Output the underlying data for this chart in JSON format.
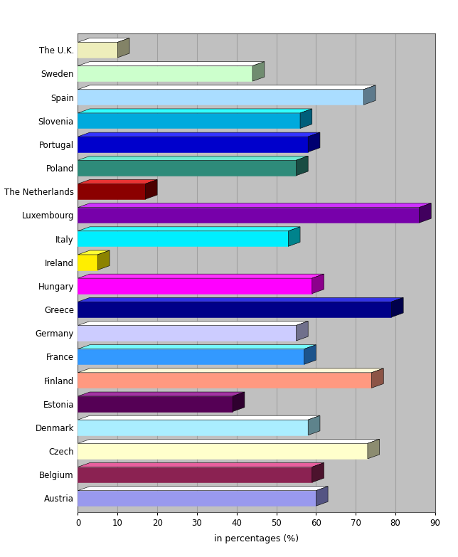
{
  "countries": [
    "Austria",
    "Belgium",
    "Czech",
    "Denmark",
    "Estonia",
    "Finland",
    "France",
    "Germany",
    "Greece",
    "Hungary",
    "Ireland",
    "Italy",
    "Luxembourg",
    "The Netherlands",
    "Poland",
    "Portugal",
    "Slovenia",
    "Spain",
    "Sweden",
    "The U.K."
  ],
  "values": [
    60,
    59,
    73,
    58,
    39,
    74,
    57,
    55,
    79,
    59,
    5,
    53,
    86,
    17,
    55,
    58,
    56,
    72,
    44,
    10
  ],
  "colors": [
    "#9999ee",
    "#8b2252",
    "#ffffcc",
    "#aaeeff",
    "#550055",
    "#ff9980",
    "#3399ff",
    "#ccccff",
    "#000088",
    "#ff00ff",
    "#ffee00",
    "#00eeff",
    "#7700aa",
    "#8b0000",
    "#2e8b7a",
    "#0000cc",
    "#00aadd",
    "#aaddff",
    "#ccffcc",
    "#eeeebb"
  ],
  "xlabel": "in percentages (%)",
  "xlim": [
    0,
    90
  ],
  "xticks": [
    0,
    10,
    20,
    30,
    40,
    50,
    60,
    70,
    80,
    90
  ],
  "bg_color": "#c0c0c0",
  "plot_bg_color": "#c0c0c0",
  "outer_bg_color": "#ffffff",
  "grid_color": "#999999"
}
